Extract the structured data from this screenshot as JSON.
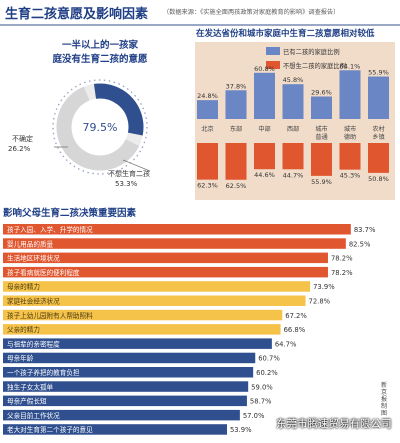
{
  "header": {
    "title": "生育二孩意愿及影响因素",
    "source": "（数据来源：《实施全面两孩政策对家庭教育的影响》调查报告）"
  },
  "watermark": "东莞市腾速贸易有限公司",
  "side_note": "新京报制图",
  "colors": {
    "navy": "#2f4f8f",
    "blue": "#6b86c4",
    "grey": "#d6d6d6",
    "orange": "#e0562f",
    "gold": "#f5c24a",
    "panel": "#f1dcc9"
  },
  "chart_data": [
    {
      "type": "pie",
      "title": "一半以上的一孩家庭没有生育二孩的意愿",
      "slices": [
        {
          "label": "不确定",
          "value": 26.2,
          "color": "#2f4f8f"
        },
        {
          "label": "不想生育二孩",
          "value": 53.3,
          "color": "#d6d6d6"
        }
      ],
      "center_value": "79.5%",
      "slice_value_labels": [
        "26.2%",
        "53.3%"
      ]
    },
    {
      "type": "bar",
      "title": "在发达省份和城市家庭中生育二孩意愿相对较低",
      "legend": [
        "已有二孩的家庭比例",
        "不想生二孩的家庭比例"
      ],
      "categories": [
        "北京",
        "东部",
        "中部",
        "西部",
        "城市普通",
        "城市德助",
        "农村乡镇"
      ],
      "series": [
        {
          "name": "已有二孩的家庭比例",
          "values": [
            24.8,
            37.8,
            60.8,
            45.8,
            29.6,
            64.1,
            55.9
          ],
          "color": "#6b86c4"
        },
        {
          "name": "不想生二孩的家庭比例",
          "values": [
            62.3,
            62.5,
            44.6,
            44.7,
            55.9,
            45.3,
            50.8
          ],
          "color": "#e0562f"
        }
      ]
    },
    {
      "type": "bar",
      "orientation": "horizontal",
      "title": "影响父母生育二孩决策重要因素",
      "xlim": [
        0,
        90
      ],
      "rows": [
        {
          "label": "孩子入园、入学、升学的情况",
          "value": 83.7,
          "color": "#e0562f"
        },
        {
          "label": "婴儿用品的质量",
          "value": 82.5,
          "color": "#e0562f"
        },
        {
          "label": "生活地区环境状况",
          "value": 78.2,
          "color": "#e0562f"
        },
        {
          "label": "孩子看病就医的便利程度",
          "value": 78.2,
          "color": "#e0562f"
        },
        {
          "label": "母亲的精力",
          "value": 73.9,
          "color": "#f5c24a"
        },
        {
          "label": "家庭社会经济状况",
          "value": 72.8,
          "color": "#f5c24a"
        },
        {
          "label": "孩子上幼儿园附有人帮助照料",
          "value": 67.2,
          "color": "#f5c24a"
        },
        {
          "label": "父亲的精力",
          "value": 66.8,
          "color": "#f5c24a"
        },
        {
          "label": "与祖辈的亲密程度",
          "value": 64.7,
          "color": "#2f4f8f"
        },
        {
          "label": "母亲年龄",
          "value": 60.7,
          "color": "#2f4f8f"
        },
        {
          "label": "一个孩子养把的教育负担",
          "value": 60.2,
          "color": "#2f4f8f"
        },
        {
          "label": "独生子女太孤单",
          "value": 59.0,
          "color": "#2f4f8f"
        },
        {
          "label": "母亲产假长短",
          "value": 58.7,
          "color": "#2f4f8f"
        },
        {
          "label": "父亲目前工作状况",
          "value": 57.0,
          "color": "#2f4f8f"
        },
        {
          "label": "老大对生育第二个孩子的意见",
          "value": 53.9,
          "color": "#2f4f8f"
        }
      ]
    }
  ]
}
